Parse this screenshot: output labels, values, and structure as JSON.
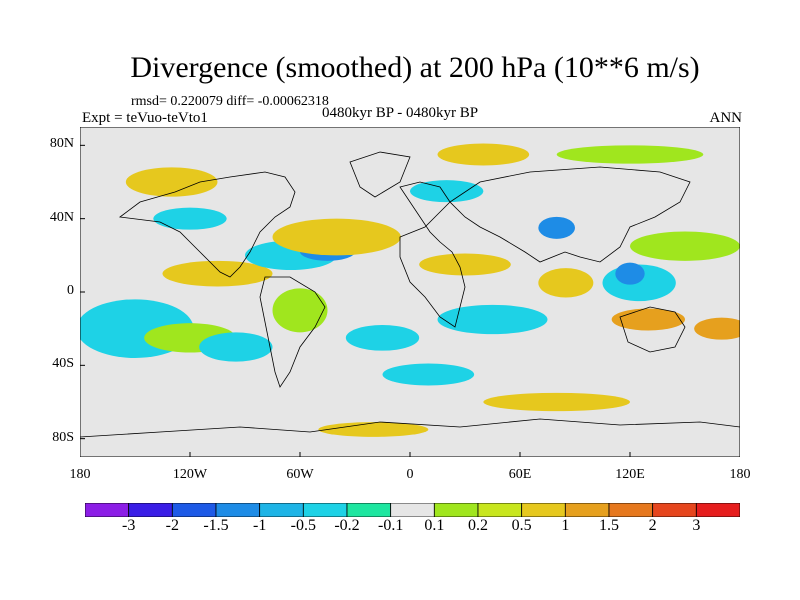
{
  "title": "Divergence (smoothed) at 200 hPa (10**6 m/s)",
  "stats": "rmsd= 0.220079  diff= -0.00062318",
  "experiment": "Expt = teVuo-teVto1",
  "period": "0480kyr BP - 0480kyr BP",
  "season": "ANN",
  "map": {
    "projection": "cylindrical-equidistant",
    "background_color": "#e6e6e6",
    "coastline_color": "#000000",
    "lat_range": [
      -90,
      90
    ],
    "lon_range": [
      -180,
      180
    ],
    "y_ticks": [
      {
        "lat": 80,
        "label": "80N"
      },
      {
        "lat": 40,
        "label": "40N"
      },
      {
        "lat": 0,
        "label": "0"
      },
      {
        "lat": -40,
        "label": "40S"
      },
      {
        "lat": -80,
        "label": "80S"
      }
    ],
    "x_ticks": [
      {
        "lon": -180,
        "label": "180"
      },
      {
        "lon": -120,
        "label": "120W"
      },
      {
        "lon": -60,
        "label": "60W"
      },
      {
        "lon": 0,
        "label": "0"
      },
      {
        "lon": 60,
        "label": "60E"
      },
      {
        "lon": 120,
        "label": "120E"
      },
      {
        "lon": 180,
        "label": "180"
      }
    ]
  },
  "legend": {
    "colors": [
      "#8c1ee6",
      "#3a1ee6",
      "#1e5ae6",
      "#1e8ce6",
      "#1eb4e6",
      "#1ed2e6",
      "#1ee6a0",
      "#e6e6e6",
      "#a0e61e",
      "#c8e61e",
      "#e6c81e",
      "#e6a01e",
      "#e6781e",
      "#e6461e",
      "#e61e1e"
    ],
    "labels": [
      "-3",
      "-2",
      "-1.5",
      "-1",
      "-0.5",
      "-0.2",
      "-0.1",
      "0.1",
      "0.2",
      "0.5",
      "1",
      "1.5",
      "2",
      "3"
    ]
  },
  "field_blobs": [
    {
      "lon": -145,
      "lat": -15,
      "rx": 20,
      "ry": 9,
      "color": "#1e8ce6"
    },
    {
      "lon": -150,
      "lat": -20,
      "rx": 32,
      "ry": 16,
      "color": "#1ed2e6"
    },
    {
      "lon": -120,
      "lat": -25,
      "rx": 25,
      "ry": 8,
      "color": "#a0e61e"
    },
    {
      "lon": -105,
      "lat": 10,
      "rx": 30,
      "ry": 7,
      "color": "#e6c81e"
    },
    {
      "lon": -65,
      "lat": 20,
      "rx": 25,
      "ry": 8,
      "color": "#1ed2e6"
    },
    {
      "lon": -45,
      "lat": 22,
      "rx": 15,
      "ry": 5,
      "color": "#1e8ce6"
    },
    {
      "lon": -40,
      "lat": 30,
      "rx": 35,
      "ry": 10,
      "color": "#e6c81e"
    },
    {
      "lon": -95,
      "lat": -30,
      "rx": 20,
      "ry": 8,
      "color": "#1ed2e6"
    },
    {
      "lon": -60,
      "lat": -10,
      "rx": 15,
      "ry": 12,
      "color": "#a0e61e"
    },
    {
      "lon": -15,
      "lat": -25,
      "rx": 20,
      "ry": 7,
      "color": "#1ed2e6"
    },
    {
      "lon": 30,
      "lat": 15,
      "rx": 25,
      "ry": 6,
      "color": "#e6c81e"
    },
    {
      "lon": 45,
      "lat": -15,
      "rx": 30,
      "ry": 8,
      "color": "#1ed2e6"
    },
    {
      "lon": 10,
      "lat": -45,
      "rx": 25,
      "ry": 6,
      "color": "#1ed2e6"
    },
    {
      "lon": 80,
      "lat": 35,
      "rx": 10,
      "ry": 6,
      "color": "#1e8ce6"
    },
    {
      "lon": 85,
      "lat": 5,
      "rx": 15,
      "ry": 8,
      "color": "#e6c81e"
    },
    {
      "lon": 125,
      "lat": 5,
      "rx": 20,
      "ry": 10,
      "color": "#1ed2e6"
    },
    {
      "lon": 120,
      "lat": 10,
      "rx": 8,
      "ry": 6,
      "color": "#1e8ce6"
    },
    {
      "lon": 150,
      "lat": 25,
      "rx": 30,
      "ry": 8,
      "color": "#a0e61e"
    },
    {
      "lon": 130,
      "lat": -15,
      "rx": 20,
      "ry": 6,
      "color": "#e6a01e"
    },
    {
      "lon": 40,
      "lat": 75,
      "rx": 25,
      "ry": 6,
      "color": "#e6c81e"
    },
    {
      "lon": 120,
      "lat": 75,
      "rx": 40,
      "ry": 5,
      "color": "#a0e61e"
    },
    {
      "lon": -130,
      "lat": 60,
      "rx": 25,
      "ry": 8,
      "color": "#e6c81e"
    },
    {
      "lon": -120,
      "lat": 40,
      "rx": 20,
      "ry": 6,
      "color": "#1ed2e6"
    },
    {
      "lon": 20,
      "lat": 55,
      "rx": 20,
      "ry": 6,
      "color": "#1ed2e6"
    },
    {
      "lon": 80,
      "lat": -60,
      "rx": 40,
      "ry": 5,
      "color": "#e6c81e"
    },
    {
      "lon": -20,
      "lat": -75,
      "rx": 30,
      "ry": 4,
      "color": "#e6c81e"
    },
    {
      "lon": 170,
      "lat": -20,
      "rx": 15,
      "ry": 6,
      "color": "#e6a01e"
    }
  ]
}
